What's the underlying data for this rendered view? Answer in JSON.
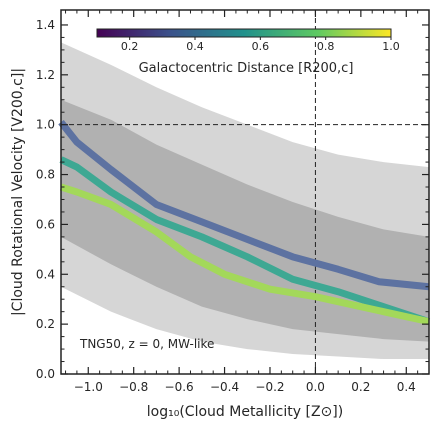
{
  "chart_data": {
    "type": "line",
    "xlabel": "log₁₀(Cloud Metallicity [Z⊙])",
    "ylabel": "|Cloud Rotational Velocity [V200,c]|",
    "xlim": [
      -1.12,
      0.5
    ],
    "ylim": [
      0.0,
      1.46
    ],
    "x_ticks": [
      -1.0,
      -0.8,
      -0.6,
      -0.4,
      -0.2,
      0.0,
      0.2,
      0.4
    ],
    "x_tick_labels": [
      "−1.0",
      "−0.8",
      "−0.6",
      "−0.4",
      "−0.2",
      "0.0",
      "0.2",
      "0.4"
    ],
    "y_ticks": [
      0.0,
      0.2,
      0.4,
      0.6,
      0.8,
      1.0,
      1.2,
      1.4
    ],
    "y_tick_labels": [
      "0.0",
      "0.2",
      "0.4",
      "0.6",
      "0.8",
      "1.0",
      "1.2",
      "1.4"
    ],
    "reference_lines": {
      "vertical_x": 0.0,
      "horizontal_y": 1.0
    },
    "annotation": "TNG50, z = 0, MW-like",
    "colorbar": {
      "label": "Galactocentric Distance [R200,c]",
      "range": [
        0.1,
        1.0
      ],
      "ticks": [
        0.2,
        0.4,
        0.6,
        0.8,
        1.0
      ],
      "tick_labels": [
        "0.2",
        "0.4",
        "0.6",
        "0.8",
        "1.0"
      ],
      "colormap": [
        "#440154",
        "#3b528b",
        "#21918c",
        "#5ec962",
        "#fde725"
      ],
      "placement": "top-center"
    },
    "bands": [
      {
        "color": "#c8c8c8",
        "x": [
          -1.12,
          -0.9,
          -0.7,
          -0.5,
          -0.3,
          -0.1,
          0.1,
          0.3,
          0.5
        ],
        "upper": [
          1.33,
          1.24,
          1.15,
          1.07,
          1.0,
          0.93,
          0.88,
          0.85,
          0.83
        ],
        "lower": [
          0.35,
          0.25,
          0.18,
          0.13,
          0.1,
          0.08,
          0.07,
          0.06,
          0.06
        ]
      },
      {
        "color": "#a8a8a8",
        "x": [
          -1.12,
          -0.9,
          -0.7,
          -0.5,
          -0.3,
          -0.1,
          0.1,
          0.3,
          0.5
        ],
        "upper": [
          1.1,
          1.02,
          0.92,
          0.84,
          0.76,
          0.69,
          0.63,
          0.58,
          0.55
        ],
        "lower": [
          0.55,
          0.44,
          0.35,
          0.27,
          0.22,
          0.18,
          0.16,
          0.14,
          0.13
        ]
      }
    ],
    "series": [
      {
        "color": "#5d72a1",
        "x": [
          -1.12,
          -1.05,
          -0.9,
          -0.7,
          -0.5,
          -0.3,
          -0.1,
          0.1,
          0.28,
          0.5
        ],
        "y": [
          1.01,
          0.93,
          0.82,
          0.68,
          0.61,
          0.54,
          0.47,
          0.42,
          0.37,
          0.35
        ]
      },
      {
        "color": "#3ea893",
        "x": [
          -1.12,
          -1.05,
          -0.9,
          -0.7,
          -0.5,
          -0.3,
          -0.1,
          0.1,
          0.3,
          0.5
        ],
        "y": [
          0.86,
          0.83,
          0.73,
          0.62,
          0.55,
          0.47,
          0.38,
          0.33,
          0.27,
          0.21
        ]
      },
      {
        "color": "#a3d85a",
        "x": [
          -1.12,
          -1.05,
          -0.9,
          -0.7,
          -0.55,
          -0.4,
          -0.2,
          0.0,
          0.2,
          0.4,
          0.5
        ],
        "y": [
          0.75,
          0.73,
          0.68,
          0.57,
          0.47,
          0.4,
          0.34,
          0.31,
          0.27,
          0.23,
          0.21
        ]
      }
    ]
  }
}
